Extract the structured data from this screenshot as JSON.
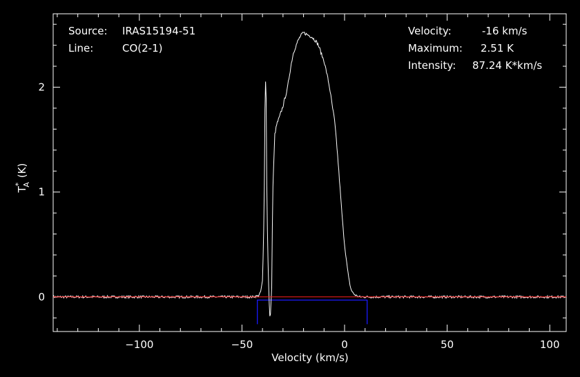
{
  "annotations": {
    "source_label": "Source:",
    "source_value": "IRAS15194-51",
    "line_label": "Line:",
    "line_value": "CO(2-1)",
    "velocity_label": "Velocity:",
    "velocity_value": "-16 km/s",
    "maximum_label": "Maximum:",
    "maximum_value": "2.51 K",
    "intensity_label": "Intensity:",
    "intensity_value": "87.24 K*km/s"
  },
  "colors": {
    "background": "#000000",
    "spectrum": "#ffffff",
    "baseline": "#ff2020",
    "window": "#1a1aff"
  },
  "chart_data": {
    "type": "line",
    "xlabel": "Velocity (km/s)",
    "ylabel_main": "T",
    "ylabel_sup": "*",
    "ylabel_sub": "A",
    "ylabel_unit": "(K)",
    "xlim": [
      -142,
      108
    ],
    "ylim": [
      -0.33,
      2.7
    ],
    "xticks": [
      -100,
      -50,
      0,
      50,
      100
    ],
    "xtick_labels": [
      "−100",
      "−50",
      "0",
      "50",
      "100"
    ],
    "yticks": [
      0,
      1,
      2
    ],
    "ytick_labels": [
      "0",
      "1",
      "2"
    ],
    "grid": false,
    "baseline_y": 0,
    "integration_window": {
      "x": [
        -42.5,
        11
      ],
      "y_top": -0.03,
      "y_bottom": -0.26
    },
    "series": [
      {
        "x": [
          -142,
          -120,
          -100,
          -80,
          -60,
          -45,
          -42,
          -41,
          -40,
          -39.5,
          -39,
          -38.8,
          -38.5,
          -38.2,
          -38,
          -37.5,
          -37,
          -36.5,
          -36,
          -35.5,
          -35,
          -34,
          -33,
          -32,
          -31,
          -30,
          -29,
          -28,
          -27,
          -26,
          -25,
          -24,
          -23,
          -22,
          -21,
          -20,
          -19,
          -18,
          -17,
          -16,
          -15,
          -14,
          -13,
          -12,
          -11,
          -10,
          -9,
          -8,
          -7,
          -6,
          -5,
          -4,
          -3,
          -2,
          -1,
          0,
          1,
          2,
          3,
          4,
          5,
          6,
          7,
          8,
          9,
          10,
          12,
          20,
          40,
          60,
          80,
          108
        ],
        "y": [
          0,
          0,
          0,
          0,
          0,
          0,
          0.01,
          0.04,
          0.15,
          0.5,
          1.2,
          1.8,
          2.05,
          1.9,
          1.2,
          0.5,
          0.1,
          -0.2,
          -0.15,
          0.1,
          1.0,
          1.55,
          1.65,
          1.7,
          1.76,
          1.82,
          1.9,
          1.97,
          2.1,
          2.22,
          2.32,
          2.38,
          2.43,
          2.47,
          2.5,
          2.52,
          2.51,
          2.5,
          2.49,
          2.48,
          2.46,
          2.44,
          2.41,
          2.36,
          2.3,
          2.25,
          2.16,
          2.07,
          1.96,
          1.82,
          1.7,
          1.5,
          1.25,
          0.98,
          0.72,
          0.5,
          0.33,
          0.18,
          0.08,
          0.04,
          0.02,
          0.01,
          0,
          0,
          0,
          0,
          0,
          0,
          0,
          0,
          0,
          0
        ]
      }
    ]
  }
}
